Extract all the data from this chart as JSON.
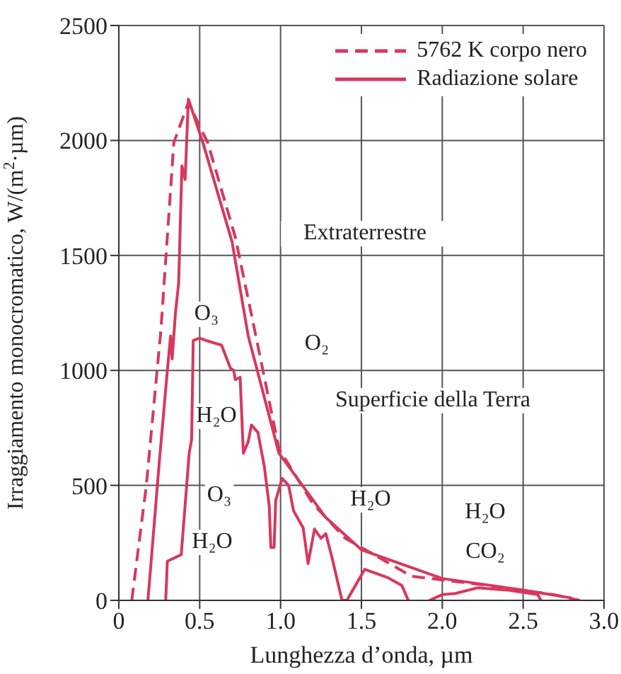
{
  "chart_data": {
    "type": "line",
    "xlabel": "Lunghezza d’onda, µm",
    "ylabel": "Irraggiamento monocromatico, W/(m$^{2}$·µm)",
    "xlim": [
      0,
      3
    ],
    "ylim": [
      0,
      2500
    ],
    "xticks": [
      0,
      0.5,
      {
        "value": 1,
        "label": "1.0"
      },
      1.5,
      {
        "value": 2,
        "label": "2.0"
      },
      2.5,
      {
        "value": 3,
        "label": "3.0"
      }
    ],
    "yticks": [
      0,
      500,
      1000,
      1500,
      2000,
      2500
    ],
    "grid": true,
    "legend": "top right",
    "marker": "none",
    "series": [
      {
        "name": "5762 K corpo nero",
        "color": "#d7385e",
        "line_style": "dashed",
        "x": [
          0.08,
          0.17,
          0.26,
          0.34,
          0.43,
          0.55,
          0.72,
          0.84,
          0.99,
          1.2,
          1.4,
          1.6,
          1.81,
          2.25,
          2.69,
          2.85
        ],
        "values": [
          0,
          500,
          1175,
          1990,
          2165,
          1990,
          1580,
          1175,
          660,
          420,
          270,
          190,
          105,
          68,
          25,
          0
        ]
      },
      {
        "name": "Radiazione solare",
        "color": "#d7385e",
        "line_style": "solid",
        "x": [
          0.18,
          0.25,
          0.3,
          0.32,
          0.33,
          0.35,
          0.37,
          0.39,
          0.41,
          0.43,
          0.52,
          0.7,
          0.8,
          0.99,
          1.28,
          1.5,
          2.0,
          2.5,
          2.8
        ],
        "values": [
          0,
          600,
          1000,
          1150,
          1050,
          1250,
          1380,
          1890,
          1830,
          2180,
          1990,
          1560,
          1150,
          640,
          360,
          220,
          95,
          45,
          10
        ]
      },
      {
        "color": "#d7385e",
        "line_style": "solid",
        "x": [
          0.29,
          0.3,
          0.386,
          0.435,
          0.45,
          0.46,
          0.5,
          0.54,
          0.635,
          0.69,
          0.71,
          0.72,
          0.75,
          0.77,
          0.8,
          0.82,
          0.86,
          0.9,
          0.93,
          0.94,
          0.96,
          0.97,
          1.01,
          1.05,
          1.08,
          1.14,
          1.17,
          1.21,
          1.25,
          1.28,
          1.32,
          1.38,
          1.41,
          1.52,
          1.66,
          1.75,
          1.79,
          1.85,
          1.92,
          2.0,
          2.08,
          2.22,
          2.4,
          2.59,
          2.61
        ],
        "values": [
          0,
          170,
          199,
          640,
          700,
          1130,
          1140,
          1130,
          1110,
          1010,
          1000,
          960,
          970,
          640,
          690,
          763,
          730,
          580,
          410,
          230,
          230,
          435,
          530,
          500,
          390,
          315,
          160,
          310,
          270,
          290,
          180,
          0,
          0,
          135,
          100,
          65,
          0,
          null,
          0,
          25,
          30,
          55,
          45,
          25,
          0
        ]
      }
    ],
    "annotations": [
      "Extraterrestre",
      "O₃",
      "O₂",
      "H₂O",
      "Superficie della Terra",
      "O₃",
      "H₂O",
      "H₂O",
      "H₂O",
      "CO₂"
    ]
  }
}
